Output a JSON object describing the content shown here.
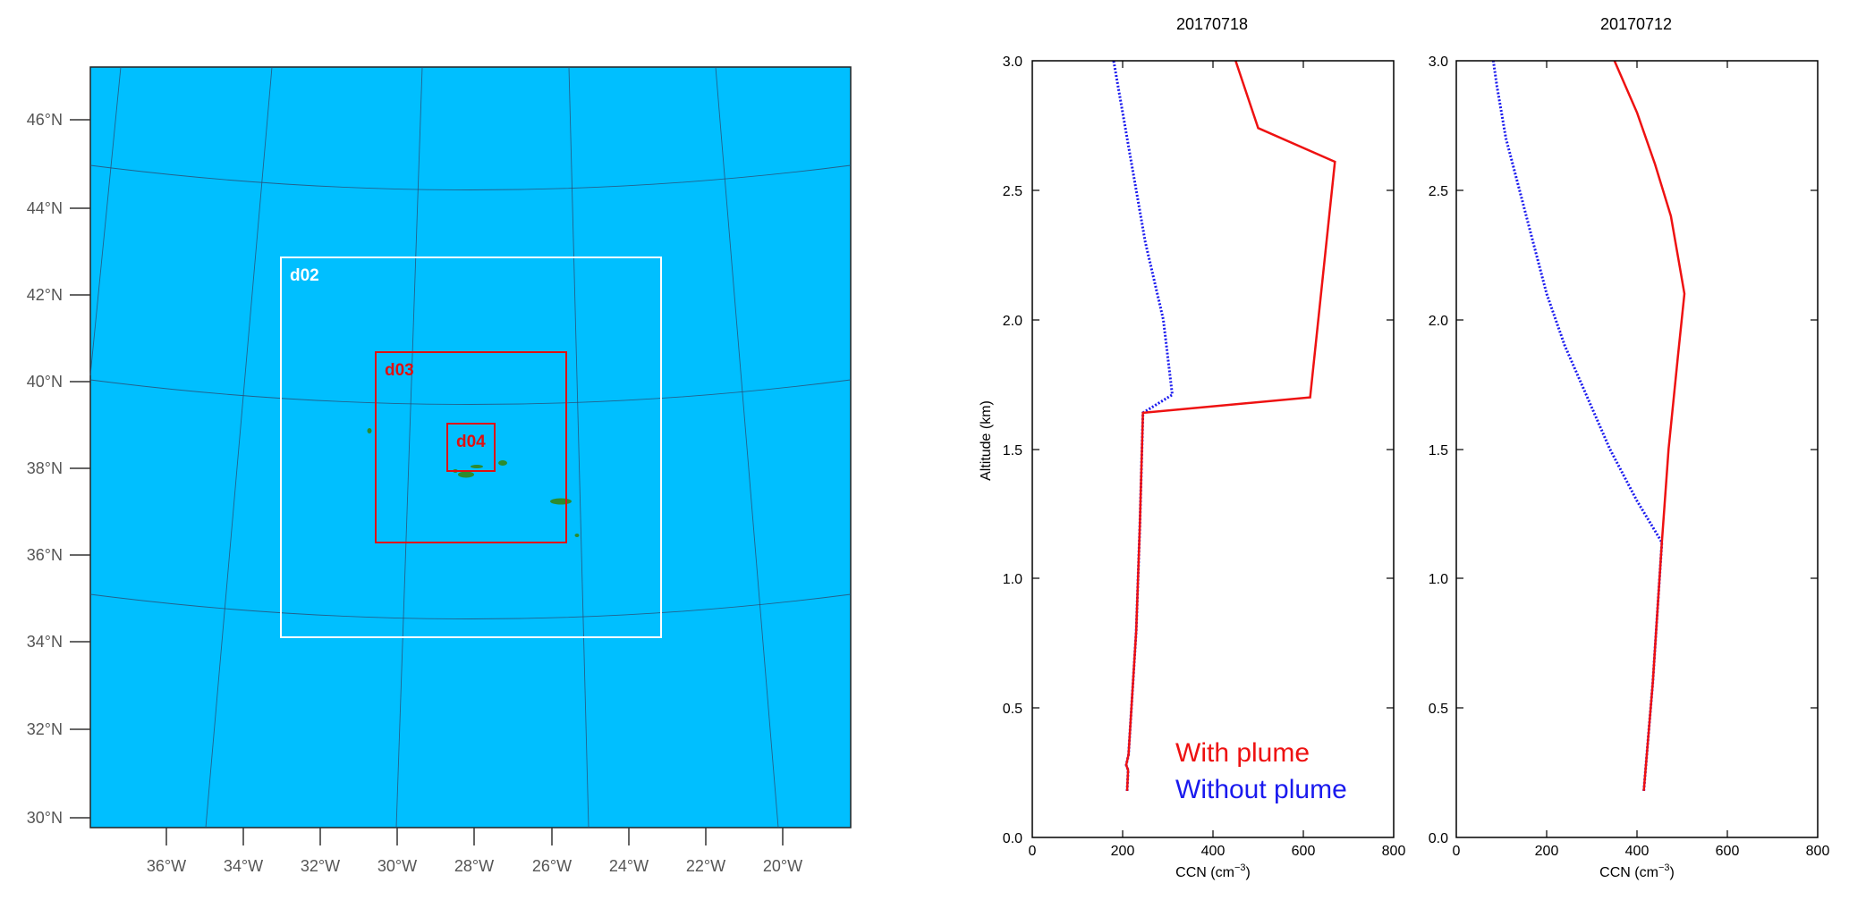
{
  "map": {
    "lat_labels": [
      "46°N",
      "44°N",
      "42°N",
      "40°N",
      "38°N",
      "36°N",
      "34°N",
      "32°N",
      "30°N"
    ],
    "lon_labels": [
      "36°W",
      "34°W",
      "32°W",
      "30°W",
      "28°W",
      "26°W",
      "24°W",
      "22°W",
      "20°W"
    ],
    "domains": [
      {
        "label": "d02",
        "color": "#ffffff"
      },
      {
        "label": "d03",
        "color": "#e01010"
      },
      {
        "label": "d04",
        "color": "#e01010"
      }
    ],
    "ocean_color": "#00bfff",
    "land_color": "#2e8b2e"
  },
  "chart_data": [
    {
      "type": "line",
      "title": "20170718",
      "xlabel": "CCN (cm",
      "xlabel_exp": "−3",
      "xlabel_close": ")",
      "ylabel": "Altitude (km)",
      "xlim": [
        0,
        800
      ],
      "ylim": [
        0,
        3.0
      ],
      "xticks": [
        "0",
        "200",
        "400",
        "600",
        "800"
      ],
      "yticks": [
        "0.0",
        "0.5",
        "1.0",
        "1.5",
        "2.0",
        "2.5",
        "3.0"
      ],
      "series": [
        {
          "name": "With plume",
          "color": "#ee1111",
          "style": "solid",
          "points": [
            [
              210,
              0.18
            ],
            [
              212,
              0.26
            ],
            [
              208,
              0.28
            ],
            [
              213,
              0.32
            ],
            [
              230,
              0.8
            ],
            [
              238,
              1.2
            ],
            [
              245,
              1.64
            ],
            [
              615,
              1.7
            ],
            [
              670,
              2.61
            ],
            [
              500,
              2.74
            ],
            [
              450,
              3.0
            ]
          ]
        },
        {
          "name": "Without plume",
          "color": "#1a1aee",
          "style": "dotted",
          "points": [
            [
              210,
              0.18
            ],
            [
              212,
              0.26
            ],
            [
              208,
              0.28
            ],
            [
              213,
              0.32
            ],
            [
              230,
              0.8
            ],
            [
              238,
              1.2
            ],
            [
              245,
              1.64
            ],
            [
              310,
              1.71
            ],
            [
              290,
              2.0
            ],
            [
              250,
              2.3
            ],
            [
              220,
              2.6
            ],
            [
              200,
              2.8
            ],
            [
              180,
              3.0
            ]
          ]
        }
      ],
      "legend": {
        "position": "bottom-right",
        "entries": [
          "With plume",
          "Without plume"
        ]
      }
    },
    {
      "type": "line",
      "title": "20170712",
      "xlabel": "CCN (cm",
      "xlabel_exp": "−3",
      "xlabel_close": ")",
      "xlim": [
        0,
        800
      ],
      "ylim": [
        0,
        3.0
      ],
      "xticks": [
        "0",
        "200",
        "400",
        "600",
        "800"
      ],
      "yticks": [
        "0.0",
        "0.5",
        "1.0",
        "1.5",
        "2.0",
        "2.5",
        "3.0"
      ],
      "series": [
        {
          "name": "With plume",
          "color": "#ee1111",
          "style": "solid",
          "points": [
            [
              415,
              0.18
            ],
            [
              435,
              0.6
            ],
            [
              455,
              1.14
            ],
            [
              470,
              1.5
            ],
            [
              490,
              1.85
            ],
            [
              505,
              2.1
            ],
            [
              495,
              2.2
            ],
            [
              475,
              2.4
            ],
            [
              440,
              2.6
            ],
            [
              400,
              2.8
            ],
            [
              350,
              3.0
            ]
          ]
        },
        {
          "name": "Without plume",
          "color": "#1a1aee",
          "style": "dotted",
          "points": [
            [
              415,
              0.18
            ],
            [
              435,
              0.6
            ],
            [
              455,
              1.14
            ],
            [
              400,
              1.3
            ],
            [
              340,
              1.5
            ],
            [
              290,
              1.7
            ],
            [
              240,
              1.9
            ],
            [
              200,
              2.1
            ],
            [
              170,
              2.3
            ],
            [
              140,
              2.5
            ],
            [
              110,
              2.7
            ],
            [
              90,
              2.9
            ],
            [
              82,
              3.0
            ]
          ]
        }
      ]
    }
  ]
}
